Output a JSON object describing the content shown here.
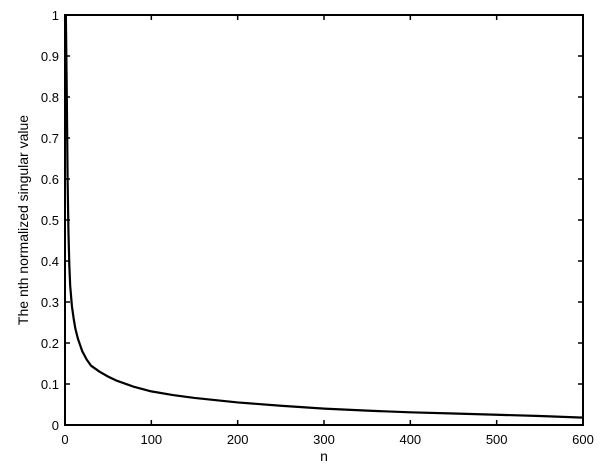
{
  "chart_data": {
    "type": "line",
    "title": "",
    "xlabel": "n",
    "ylabel": "The nth normalized singular value",
    "xlim": [
      0,
      600
    ],
    "ylim": [
      0,
      1
    ],
    "xticks": [
      0,
      100,
      200,
      300,
      400,
      500,
      600
    ],
    "yticks": [
      0,
      0.1,
      0.2,
      0.3,
      0.4,
      0.5,
      0.6,
      0.7,
      0.8,
      0.9,
      1
    ],
    "xtick_labels": [
      "0",
      "100",
      "200",
      "300",
      "400",
      "500",
      "600"
    ],
    "ytick_labels": [
      "0",
      "0.1",
      "0.2",
      "0.3",
      "0.4",
      "0.5",
      "0.6",
      "0.7",
      "0.8",
      "0.9",
      "1"
    ],
    "grid": false,
    "legend": "none",
    "line_color": "#000000",
    "series": [
      {
        "x": [
          1,
          2,
          3,
          4,
          5,
          6,
          8,
          10,
          12,
          15,
          20,
          25,
          30,
          40,
          50,
          60,
          80,
          100,
          125,
          150,
          200,
          250,
          300,
          350,
          400,
          450,
          500,
          550,
          600
        ],
        "values": [
          1.0,
          0.82,
          0.6,
          0.47,
          0.39,
          0.34,
          0.29,
          0.26,
          0.235,
          0.21,
          0.18,
          0.16,
          0.145,
          0.13,
          0.118,
          0.108,
          0.093,
          0.082,
          0.073,
          0.066,
          0.055,
          0.047,
          0.04,
          0.035,
          0.031,
          0.028,
          0.025,
          0.022,
          0.018
        ]
      }
    ]
  }
}
